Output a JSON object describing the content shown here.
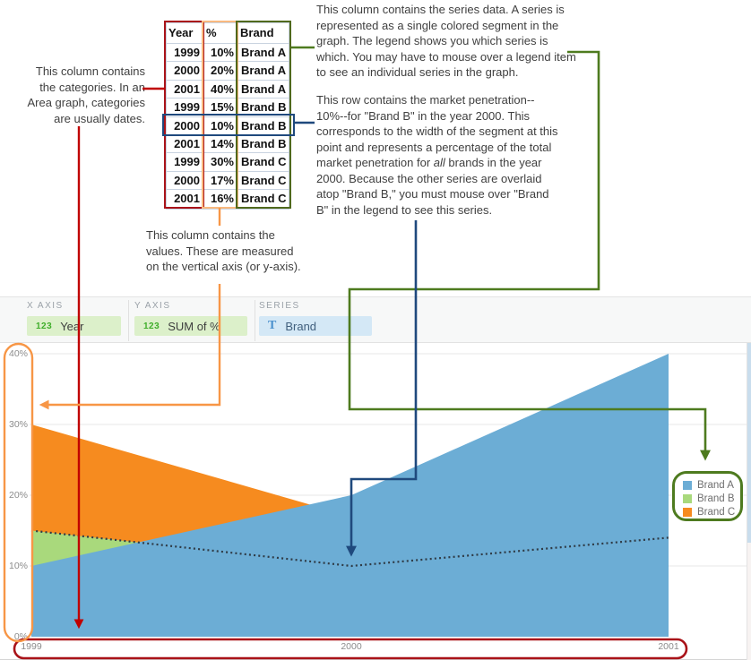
{
  "colors": {
    "red_line": "#c00000",
    "red_outline": "#a91319",
    "orange_line": "#f79646",
    "orange_table": "#f9b97f",
    "green_line": "#4e7b1f",
    "green_table": "#50691d",
    "blue_line": "#1f497d",
    "brand_a": "#6cadd5",
    "brand_b": "#a9d97c",
    "brand_c": "#f68b1f",
    "pill_green_bg": "#dcf0ca",
    "pill_blue_bg": "#d4e8f6",
    "num_icon": "#3fae2a",
    "text_icon": "#4a90cd",
    "grid": "#e7e7e7",
    "axis_text": "#8c8c8c",
    "dotted": "#2f3b46",
    "ann_text": "#3f3f3f"
  },
  "annotations": {
    "series": "This column contains the series data. A series is\nrepresented as a single colored segment in the\ngraph. The legend shows you which series is\nwhich. You may have to mouse over a legend item\nto see an individual series in the graph.",
    "row_part1": "This row contains the market penetration--\n10%--for \"Brand B\" in the year 2000. This\ncorresponds to the width of the segment at this\npoint and represents a percentage of the total\nmarket penetration for ",
    "row_italic": "all",
    "row_part2": " brands in the year\n2000. Because the other series are overlaid\natop \"Brand B,\" you must mouse over \"Brand\nB\" in the legend to see this series.",
    "categories": "This column contains\nthe categories. In an\nArea graph, categories\nare usually dates.",
    "values": "This column contains the\nvalues. These are measured\non the vertical axis (or y-axis)."
  },
  "table": {
    "headers": [
      "Year",
      "%",
      "Brand"
    ],
    "rows": [
      [
        "1999",
        "10%",
        "Brand A"
      ],
      [
        "2000",
        "20%",
        "Brand A"
      ],
      [
        "2001",
        "40%",
        "Brand A"
      ],
      [
        "1999",
        "15%",
        "Brand B"
      ],
      [
        "2000",
        "10%",
        "Brand B"
      ],
      [
        "2001",
        "14%",
        "Brand B"
      ],
      [
        "1999",
        "30%",
        "Brand C"
      ],
      [
        "2000",
        "17%",
        "Brand C"
      ],
      [
        "2001",
        "16%",
        "Brand C"
      ]
    ],
    "highlighted_row": [
      "2000",
      "10%",
      "Brand B"
    ],
    "highlighted_row_index": 4
  },
  "builder": {
    "fields": [
      {
        "label": "X AXIS",
        "icon_glyph": "123",
        "icon_type": "number",
        "value": "Year"
      },
      {
        "label": "Y AXIS",
        "icon_glyph": "123",
        "icon_type": "number",
        "value": "SUM of %"
      },
      {
        "label": "SERIES",
        "icon_glyph": "T",
        "icon_type": "text",
        "value": "Brand"
      }
    ]
  },
  "chart_data": {
    "type": "area",
    "overlay_mode": "overlaid-not-stacked",
    "categories": [
      "1999",
      "2000",
      "2001"
    ],
    "series": [
      {
        "name": "Brand A",
        "values": [
          10,
          20,
          40
        ],
        "color": "#6cadd5"
      },
      {
        "name": "Brand B",
        "values": [
          15,
          10,
          14
        ],
        "color": "#a9d97c"
      },
      {
        "name": "Brand C",
        "values": [
          30,
          17,
          16
        ],
        "color": "#f68b1f"
      }
    ],
    "dotted_series": "Brand B",
    "y_ticks": [
      "0%",
      "10%",
      "20%",
      "30%",
      "40%"
    ],
    "ylim": [
      0,
      40
    ],
    "grid": true,
    "legend": [
      "Brand A",
      "Brand B",
      "Brand C"
    ],
    "legend_position": "right"
  }
}
